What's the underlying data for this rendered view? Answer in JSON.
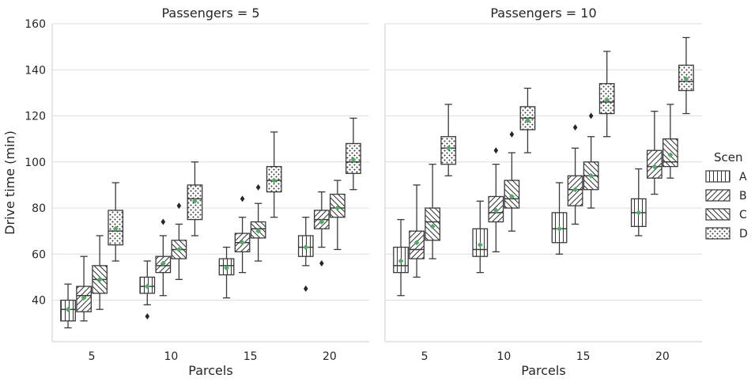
{
  "chart_data": {
    "type": "box",
    "x_label": "Parcels",
    "y_label": "Drive time (min)",
    "ylim": [
      22,
      160
    ],
    "y_ticks": [
      40,
      60,
      80,
      100,
      120,
      140,
      160
    ],
    "categories": [
      "5",
      "10",
      "15",
      "20"
    ],
    "grid": "horizontal",
    "legend": {
      "title": "Scen",
      "position": "right",
      "entries": [
        {
          "label": "A",
          "hatch": "vertical"
        },
        {
          "label": "B",
          "hatch": "diag-right"
        },
        {
          "label": "C",
          "hatch": "diag-left"
        },
        {
          "label": "D",
          "hatch": "dots"
        }
      ]
    },
    "mean_marker_color": "#55a868",
    "panels": [
      {
        "title": "Passengers = 5",
        "groups": {
          "5": [
            {
              "scen": "A",
              "whislo": 28,
              "q1": 31,
              "med": 36,
              "q3": 40,
              "whishi": 47,
              "mean": 36,
              "fliers": []
            },
            {
              "scen": "B",
              "whislo": 31,
              "q1": 35,
              "med": 42,
              "q3": 46,
              "whishi": 59,
              "mean": 41,
              "fliers": []
            },
            {
              "scen": "C",
              "whislo": 36,
              "q1": 43,
              "med": 49,
              "q3": 55,
              "whishi": 68,
              "mean": 49,
              "fliers": []
            },
            {
              "scen": "D",
              "whislo": 57,
              "q1": 64,
              "med": 70,
              "q3": 79,
              "whishi": 91,
              "mean": 71,
              "fliers": []
            }
          ],
          "10": [
            {
              "scen": "A",
              "whislo": 38,
              "q1": 43,
              "med": 46,
              "q3": 50,
              "whishi": 57,
              "mean": 46,
              "fliers": [
                33
              ]
            },
            {
              "scen": "B",
              "whislo": 42,
              "q1": 52,
              "med": 55,
              "q3": 59,
              "whishi": 68,
              "mean": 56,
              "fliers": [
                74
              ]
            },
            {
              "scen": "C",
              "whislo": 49,
              "q1": 58,
              "med": 62,
              "q3": 66,
              "whishi": 73,
              "mean": 62,
              "fliers": [
                81
              ]
            },
            {
              "scen": "D",
              "whislo": 68,
              "q1": 75,
              "med": 84,
              "q3": 90,
              "whishi": 100,
              "mean": 83,
              "fliers": []
            }
          ],
          "15": [
            {
              "scen": "A",
              "whislo": 41,
              "q1": 51,
              "med": 55,
              "q3": 58,
              "whishi": 63,
              "mean": 54,
              "fliers": []
            },
            {
              "scen": "B",
              "whislo": 52,
              "q1": 61,
              "med": 65,
              "q3": 69,
              "whishi": 76,
              "mean": 65,
              "fliers": [
                84
              ]
            },
            {
              "scen": "C",
              "whislo": 57,
              "q1": 67,
              "med": 71,
              "q3": 74,
              "whishi": 82,
              "mean": 70,
              "fliers": [
                89
              ]
            },
            {
              "scen": "D",
              "whislo": 76,
              "q1": 87,
              "med": 92,
              "q3": 98,
              "whishi": 113,
              "mean": 92,
              "fliers": []
            }
          ],
          "20": [
            {
              "scen": "A",
              "whislo": 55,
              "q1": 59,
              "med": 63,
              "q3": 68,
              "whishi": 76,
              "mean": 63,
              "fliers": [
                45
              ]
            },
            {
              "scen": "B",
              "whislo": 63,
              "q1": 71,
              "med": 75,
              "q3": 79,
              "whishi": 87,
              "mean": 74,
              "fliers": [
                56
              ]
            },
            {
              "scen": "C",
              "whislo": 62,
              "q1": 76,
              "med": 80,
              "q3": 86,
              "whishi": 92,
              "mean": 80,
              "fliers": []
            },
            {
              "scen": "D",
              "whislo": 88,
              "q1": 95,
              "med": 100,
              "q3": 108,
              "whishi": 119,
              "mean": 101,
              "fliers": []
            }
          ]
        }
      },
      {
        "title": "Passengers = 10",
        "groups": {
          "5": [
            {
              "scen": "A",
              "whislo": 42,
              "q1": 52,
              "med": 55,
              "q3": 63,
              "whishi": 75,
              "mean": 57,
              "fliers": []
            },
            {
              "scen": "B",
              "whislo": 50,
              "q1": 58,
              "med": 62,
              "q3": 70,
              "whishi": 90,
              "mean": 65,
              "fliers": []
            },
            {
              "scen": "C",
              "whislo": 58,
              "q1": 66,
              "med": 74,
              "q3": 80,
              "whishi": 99,
              "mean": 72,
              "fliers": []
            },
            {
              "scen": "D",
              "whislo": 94,
              "q1": 99,
              "med": 106,
              "q3": 111,
              "whishi": 125,
              "mean": 106,
              "fliers": []
            }
          ],
          "10": [
            {
              "scen": "A",
              "whislo": 52,
              "q1": 59,
              "med": 62,
              "q3": 71,
              "whishi": 83,
              "mean": 64,
              "fliers": []
            },
            {
              "scen": "B",
              "whislo": 61,
              "q1": 74,
              "med": 78,
              "q3": 85,
              "whishi": 99,
              "mean": 79,
              "fliers": [
                105
              ]
            },
            {
              "scen": "C",
              "whislo": 70,
              "q1": 80,
              "med": 84,
              "q3": 92,
              "whishi": 104,
              "mean": 85,
              "fliers": [
                112
              ]
            },
            {
              "scen": "D",
              "whislo": 104,
              "q1": 114,
              "med": 119,
              "q3": 124,
              "whishi": 132,
              "mean": 118,
              "fliers": []
            }
          ],
          "15": [
            {
              "scen": "A",
              "whislo": 60,
              "q1": 65,
              "med": 71,
              "q3": 78,
              "whishi": 91,
              "mean": 71,
              "fliers": []
            },
            {
              "scen": "B",
              "whislo": 73,
              "q1": 81,
              "med": 88,
              "q3": 94,
              "whishi": 106,
              "mean": 88,
              "fliers": [
                115
              ]
            },
            {
              "scen": "C",
              "whislo": 80,
              "q1": 88,
              "med": 94,
              "q3": 100,
              "whishi": 111,
              "mean": 94,
              "fliers": [
                120
              ]
            },
            {
              "scen": "D",
              "whislo": 111,
              "q1": 121,
              "med": 126,
              "q3": 134,
              "whishi": 148,
              "mean": 127,
              "fliers": []
            }
          ],
          "20": [
            {
              "scen": "A",
              "whislo": 68,
              "q1": 72,
              "med": 78,
              "q3": 84,
              "whishi": 97,
              "mean": 78,
              "fliers": []
            },
            {
              "scen": "B",
              "whislo": 86,
              "q1": 93,
              "med": 98,
              "q3": 105,
              "whishi": 122,
              "mean": 98,
              "fliers": []
            },
            {
              "scen": "C",
              "whislo": 93,
              "q1": 98,
              "med": 100,
              "q3": 110,
              "whishi": 125,
              "mean": 103,
              "fliers": []
            },
            {
              "scen": "D",
              "whislo": 121,
              "q1": 131,
              "med": 135,
              "q3": 142,
              "whishi": 154,
              "mean": 136,
              "fliers": []
            }
          ]
        }
      }
    ]
  }
}
